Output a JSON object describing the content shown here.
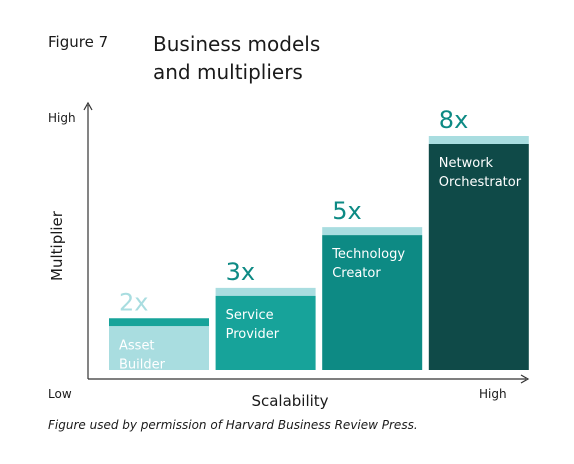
{
  "figure_label": "Figure 7",
  "title_line1": "Business models",
  "title_line2": "and multipliers",
  "caption": "Figure used by permission of Harvard Business Review Press.",
  "chart_data": {
    "type": "bar",
    "categories": [
      "Asset Builder",
      "Service Provider",
      "Technology Creator",
      "Network Orchestrator"
    ],
    "category_lines": [
      [
        "Asset",
        "Builder"
      ],
      [
        "Service",
        "Provider"
      ],
      [
        "Technology",
        "Creator"
      ],
      [
        "Network",
        "Orchestrator"
      ]
    ],
    "values": [
      2,
      3,
      5,
      8
    ],
    "value_labels": [
      "2x",
      "3x",
      "5x",
      "8x"
    ],
    "xlabel": "Scalability",
    "ylabel": "Multiplier",
    "y_high_label": "High",
    "x_low_label": "Low",
    "x_high_label": "High",
    "ylim": [
      0,
      8
    ],
    "colors": {
      "bars": [
        "#a9dde0",
        "#17a39a",
        "#0d8a84",
        "#0f4a48"
      ],
      "caps": [
        "#17a39a",
        "#a9dde0",
        "#a9dde0",
        "#a9dde0"
      ],
      "value_text": [
        "#a9dde0",
        "#0d8a84",
        "#0d8a84",
        "#0d8a84"
      ],
      "axis": "#333333"
    }
  }
}
